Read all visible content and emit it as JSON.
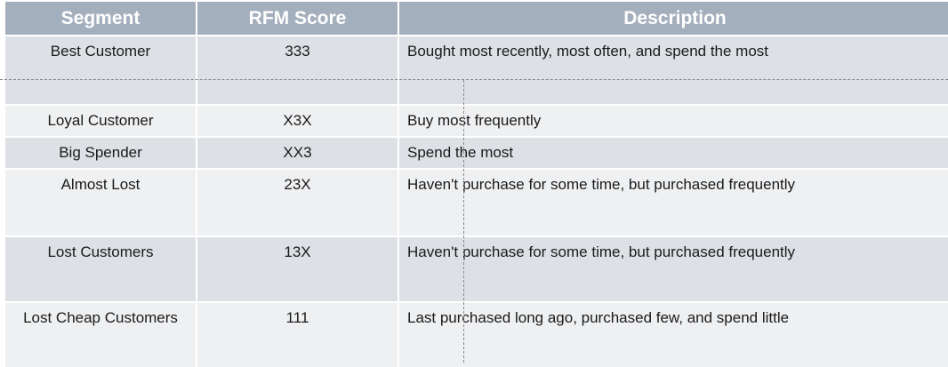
{
  "headers": [
    "Segment",
    "RFM Score",
    "Description"
  ],
  "rows": [
    {
      "segment": "Best Customer",
      "score": "333",
      "description": "Bought most recently, most often, and spend the most"
    },
    {
      "segment": "Loyal Customer",
      "score": "X3X",
      "description": "Buy most frequently"
    },
    {
      "segment": "Big Spender",
      "score": "XX3",
      "description": "Spend the most"
    },
    {
      "segment": "Almost Lost",
      "score": "23X",
      "description": "Haven't purchase for some time, but purchased frequently"
    },
    {
      "segment": "Lost Customers",
      "score": "13X",
      "description": "Haven't purchase for some time, but purchased frequently"
    },
    {
      "segment": "Lost Cheap Customers",
      "score": "111",
      "description": "Last purchased long ago, purchased few, and spend little"
    }
  ],
  "colors": {
    "header_bg": "#a4afbe",
    "header_text": "#ffffff",
    "row_dark": "#dde0e5",
    "row_light": "#eff0f2"
  }
}
